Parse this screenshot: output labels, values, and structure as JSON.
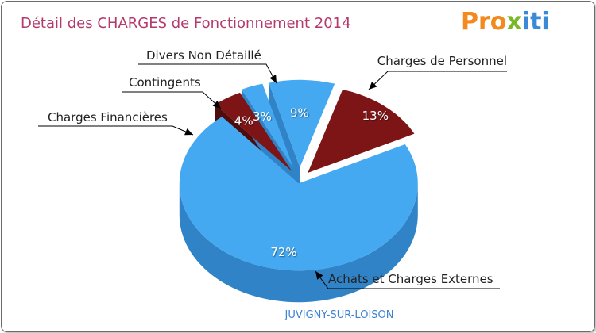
{
  "chart_data": {
    "type": "pie",
    "title": "Détail des CHARGES de Fonctionnement 2014",
    "subtitle": "JUVIGNY-SUR-LOISON",
    "slices": [
      {
        "label": "Charges de Personnel",
        "value": 13,
        "value_label": "13%",
        "color": "#7d1416",
        "side_color": "#4e0c0d"
      },
      {
        "label": "Achats et Charges Externes",
        "value": 72,
        "value_label": "72%",
        "color": "#45a9f2",
        "side_color": "#2f83c6"
      },
      {
        "label": "Charges Financières",
        "value": 4,
        "value_label": "4%",
        "color": "#7d1416",
        "side_color": "#4e0c0d"
      },
      {
        "label": "Contingents",
        "value": 3,
        "value_label": "3%",
        "color": "#45a9f2",
        "side_color": "#2f83c6"
      },
      {
        "label": "Divers Non Détaillé",
        "value": 9,
        "value_label": "9%",
        "color": "#45a9f2",
        "side_color": "#2f83c6"
      }
    ],
    "legend": "none",
    "title_color": "#b43a6c",
    "subtitle_color": "#3d83d0"
  },
  "logo": {
    "text": "Proxiti",
    "letters": [
      "P",
      "r",
      "o",
      "x",
      "i",
      "t",
      "i"
    ],
    "colors": [
      "#f28a1e",
      "#f28a1e",
      "#f28a1e",
      "#7ab828",
      "#3a8ad6",
      "#3a8ad6",
      "#3a8ad6"
    ]
  }
}
